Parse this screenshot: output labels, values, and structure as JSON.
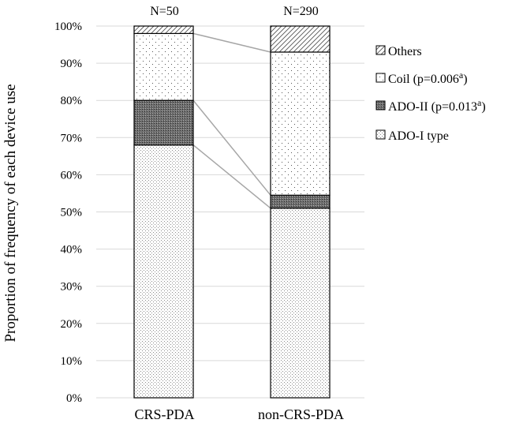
{
  "chart_data": {
    "type": "bar",
    "stacked": true,
    "ylabel": "Proportion of frequency of each device use",
    "xlabel": "",
    "ylim": [
      0,
      100
    ],
    "ytick_labels": [
      "0%",
      "10%",
      "20%",
      "30%",
      "40%",
      "50%",
      "60%",
      "70%",
      "80%",
      "90%",
      "100%"
    ],
    "categories": [
      "CRS-PDA",
      "non-CRS-PDA"
    ],
    "category_n_labels": [
      "N=50",
      "N=290"
    ],
    "series": [
      {
        "name": "ADO-I type",
        "values": [
          68,
          51
        ],
        "pattern": "fine-dots"
      },
      {
        "name": "ADO-II",
        "values": [
          12,
          3.5
        ],
        "pattern": "dense-dark"
      },
      {
        "name": "Coil",
        "values": [
          18,
          38.5
        ],
        "pattern": "sparse-dots"
      },
      {
        "name": "Others",
        "values": [
          2,
          7
        ],
        "pattern": "diagonal-hatch"
      }
    ],
    "legend": {
      "position": "right",
      "entries": [
        {
          "series": "Others",
          "label": "Others",
          "sup": "",
          "close": ""
        },
        {
          "series": "Coil",
          "label": "Coil (p=0.006",
          "sup": "a",
          "close": ")"
        },
        {
          "series": "ADO-II",
          "label": "ADO-II (p=0.013",
          "sup": "a",
          "close": ")"
        },
        {
          "series": "ADO-I type",
          "label": "ADO-I type",
          "sup": "",
          "close": ""
        }
      ]
    },
    "connector_lines": true,
    "grid": "horizontal"
  }
}
